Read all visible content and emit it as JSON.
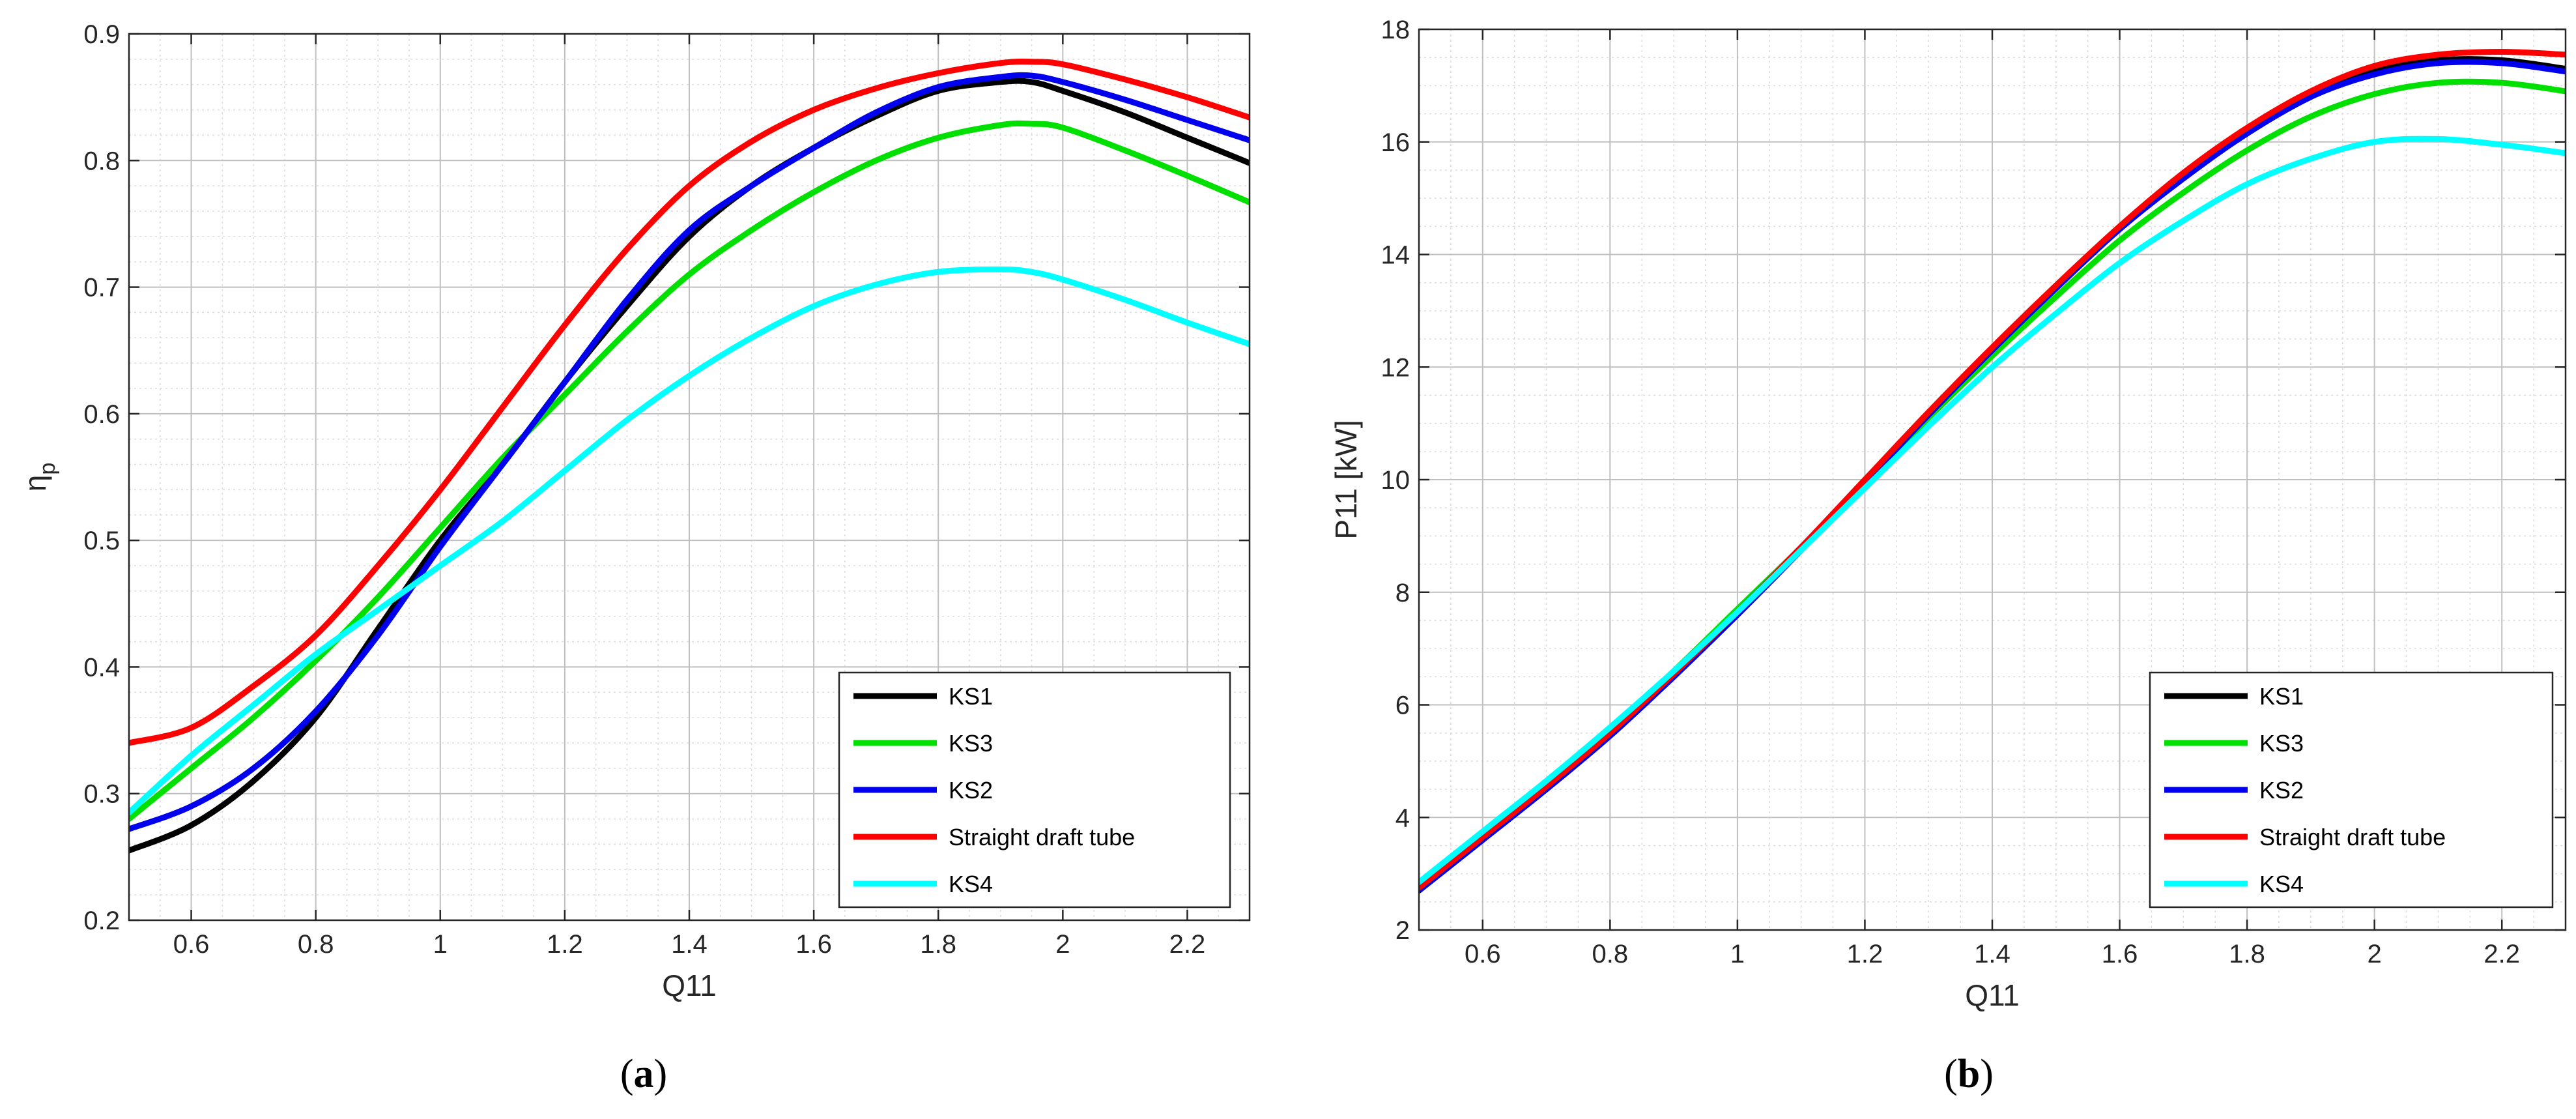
{
  "chart_data": [
    {
      "type": "line",
      "panel_label": "a",
      "xlabel": "Q11",
      "ylabel_main": "η",
      "ylabel_sub": "p",
      "xlim": [
        0.5,
        2.3
      ],
      "ylim": [
        0.2,
        0.9
      ],
      "xticks": [
        0.6,
        0.8,
        1,
        1.2,
        1.4,
        1.6,
        1.8,
        2,
        2.2
      ],
      "xtick_labels": [
        "0.6",
        "0.8",
        "1",
        "1.2",
        "1.4",
        "1.6",
        "1.8",
        "2",
        "2.2"
      ],
      "yticks": [
        0.2,
        0.3,
        0.4,
        0.5,
        0.6,
        0.7,
        0.8,
        0.9
      ],
      "ytick_labels": [
        "0.2",
        "0.3",
        "0.4",
        "0.5",
        "0.6",
        "0.7",
        "0.8",
        "0.9"
      ],
      "x_minor_step": 0.05,
      "y_minor_step": 0.02,
      "grid": true,
      "legend_position": "bottom-right",
      "series": [
        {
          "name": "KS1",
          "color": "#000000",
          "x": [
            0.5,
            0.6,
            0.7,
            0.8,
            0.9,
            1.0,
            1.1,
            1.2,
            1.3,
            1.4,
            1.5,
            1.6,
            1.7,
            1.8,
            1.9,
            1.95,
            2.0,
            2.1,
            2.2,
            2.3
          ],
          "y": [
            0.255,
            0.275,
            0.31,
            0.36,
            0.43,
            0.5,
            0.56,
            0.625,
            0.685,
            0.74,
            0.78,
            0.81,
            0.835,
            0.855,
            0.862,
            0.862,
            0.855,
            0.838,
            0.818,
            0.798
          ]
        },
        {
          "name": "KS3",
          "color": "#00e000",
          "x": [
            0.5,
            0.6,
            0.7,
            0.8,
            0.9,
            1.0,
            1.1,
            1.2,
            1.3,
            1.4,
            1.5,
            1.6,
            1.7,
            1.8,
            1.9,
            1.95,
            2.0,
            2.1,
            2.2,
            2.3
          ],
          "y": [
            0.28,
            0.32,
            0.36,
            0.405,
            0.455,
            0.51,
            0.565,
            0.615,
            0.665,
            0.71,
            0.745,
            0.775,
            0.8,
            0.818,
            0.828,
            0.829,
            0.826,
            0.808,
            0.788,
            0.767
          ]
        },
        {
          "name": "KS2",
          "color": "#0000ee",
          "x": [
            0.5,
            0.6,
            0.7,
            0.8,
            0.9,
            1.0,
            1.1,
            1.2,
            1.3,
            1.4,
            1.5,
            1.6,
            1.7,
            1.8,
            1.9,
            1.95,
            2.0,
            2.1,
            2.2,
            2.3
          ],
          "y": [
            0.272,
            0.29,
            0.32,
            0.365,
            0.425,
            0.495,
            0.56,
            0.625,
            0.69,
            0.745,
            0.78,
            0.81,
            0.838,
            0.858,
            0.866,
            0.867,
            0.862,
            0.848,
            0.832,
            0.816
          ]
        },
        {
          "name": "Straight draft tube",
          "color": "#ff0000",
          "x": [
            0.5,
            0.6,
            0.7,
            0.8,
            0.9,
            1.0,
            1.1,
            1.2,
            1.3,
            1.4,
            1.5,
            1.6,
            1.7,
            1.8,
            1.9,
            1.95,
            2.0,
            2.1,
            2.2,
            2.3
          ],
          "y": [
            0.34,
            0.352,
            0.385,
            0.425,
            0.48,
            0.54,
            0.605,
            0.67,
            0.73,
            0.78,
            0.815,
            0.84,
            0.857,
            0.869,
            0.877,
            0.878,
            0.876,
            0.864,
            0.85,
            0.834
          ]
        },
        {
          "name": "KS4",
          "color": "#00ffff",
          "x": [
            0.5,
            0.6,
            0.7,
            0.8,
            0.9,
            1.0,
            1.1,
            1.2,
            1.3,
            1.4,
            1.5,
            1.6,
            1.7,
            1.8,
            1.9,
            1.95,
            2.0,
            2.1,
            2.2,
            2.3
          ],
          "y": [
            0.285,
            0.33,
            0.37,
            0.41,
            0.445,
            0.48,
            0.515,
            0.555,
            0.595,
            0.63,
            0.66,
            0.685,
            0.702,
            0.712,
            0.714,
            0.712,
            0.706,
            0.69,
            0.672,
            0.655
          ]
        }
      ]
    },
    {
      "type": "line",
      "panel_label": "b",
      "xlabel": "Q11",
      "ylabel_main": "P11 [kW]",
      "ylabel_sub": "",
      "xlim": [
        0.5,
        2.3
      ],
      "ylim": [
        2,
        18
      ],
      "xticks": [
        0.6,
        0.8,
        1,
        1.2,
        1.4,
        1.6,
        1.8,
        2,
        2.2
      ],
      "xtick_labels": [
        "0.6",
        "0.8",
        "1",
        "1.2",
        "1.4",
        "1.6",
        "1.8",
        "2",
        "2.2"
      ],
      "yticks": [
        2,
        4,
        6,
        8,
        10,
        12,
        14,
        16,
        18
      ],
      "ytick_labels": [
        "2",
        "4",
        "6",
        "8",
        "10",
        "12",
        "14",
        "16",
        "18"
      ],
      "x_minor_step": 0.05,
      "y_minor_step": 0.5,
      "grid": true,
      "legend_position": "bottom-right",
      "series": [
        {
          "name": "KS1",
          "color": "#000000",
          "x": [
            0.5,
            0.6,
            0.7,
            0.8,
            0.9,
            1.0,
            1.1,
            1.2,
            1.3,
            1.4,
            1.5,
            1.6,
            1.7,
            1.8,
            1.9,
            2.0,
            2.1,
            2.2,
            2.3
          ],
          "y": [
            2.7,
            3.6,
            4.5,
            5.45,
            6.5,
            7.6,
            8.75,
            9.95,
            11.15,
            12.3,
            13.4,
            14.45,
            15.35,
            16.15,
            16.8,
            17.25,
            17.45,
            17.45,
            17.3
          ]
        },
        {
          "name": "KS3",
          "color": "#00e000",
          "x": [
            0.5,
            0.6,
            0.7,
            0.8,
            0.9,
            1.0,
            1.1,
            1.2,
            1.3,
            1.4,
            1.5,
            1.6,
            1.7,
            1.8,
            1.9,
            2.0,
            2.1,
            2.2,
            2.3
          ],
          "y": [
            2.8,
            3.65,
            4.55,
            5.55,
            6.6,
            7.7,
            8.8,
            9.95,
            11.1,
            12.2,
            13.25,
            14.25,
            15.1,
            15.85,
            16.45,
            16.85,
            17.05,
            17.05,
            16.9
          ]
        },
        {
          "name": "KS2",
          "color": "#0000ee",
          "x": [
            0.5,
            0.6,
            0.7,
            0.8,
            0.9,
            1.0,
            1.1,
            1.2,
            1.3,
            1.4,
            1.5,
            1.6,
            1.7,
            1.8,
            1.9,
            2.0,
            2.1,
            2.2,
            2.3
          ],
          "y": [
            2.7,
            3.6,
            4.5,
            5.45,
            6.5,
            7.6,
            8.75,
            9.95,
            11.15,
            12.3,
            13.4,
            14.45,
            15.35,
            16.15,
            16.8,
            17.2,
            17.4,
            17.4,
            17.25
          ]
        },
        {
          "name": "Straight draft tube",
          "color": "#ff0000",
          "x": [
            0.5,
            0.6,
            0.7,
            0.8,
            0.9,
            1.0,
            1.1,
            1.2,
            1.3,
            1.4,
            1.5,
            1.6,
            1.7,
            1.8,
            1.9,
            2.0,
            2.1,
            2.2,
            2.3
          ],
          "y": [
            2.75,
            3.65,
            4.55,
            5.5,
            6.55,
            7.65,
            8.8,
            10.0,
            11.2,
            12.35,
            13.45,
            14.5,
            15.45,
            16.25,
            16.9,
            17.35,
            17.55,
            17.6,
            17.55
          ]
        },
        {
          "name": "KS4",
          "color": "#00ffff",
          "x": [
            0.5,
            0.6,
            0.7,
            0.8,
            0.9,
            1.0,
            1.1,
            1.2,
            1.3,
            1.4,
            1.5,
            1.6,
            1.7,
            1.8,
            1.9,
            2.0,
            2.1,
            2.2,
            2.3
          ],
          "y": [
            2.85,
            3.75,
            4.65,
            5.6,
            6.6,
            7.65,
            8.75,
            9.85,
            10.95,
            12.0,
            12.95,
            13.85,
            14.6,
            15.25,
            15.7,
            16.0,
            16.05,
            15.95,
            15.8
          ]
        }
      ]
    }
  ]
}
